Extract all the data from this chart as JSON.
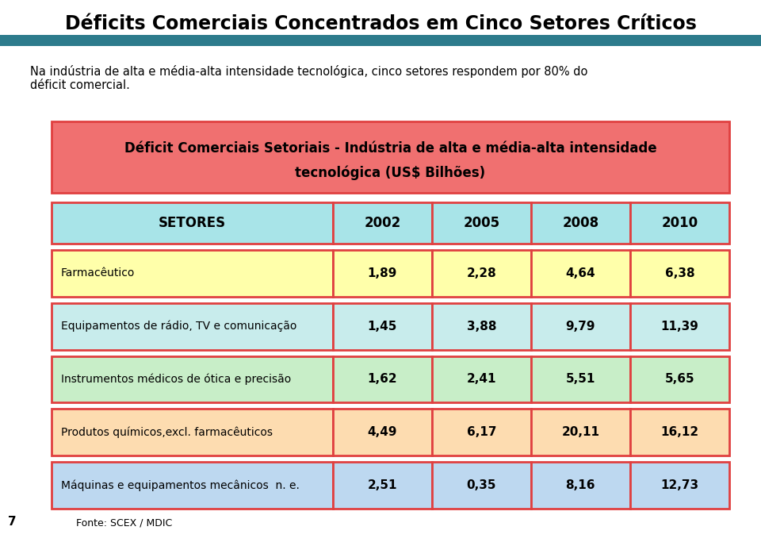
{
  "title": "Déficits Comerciais Concentrados em Cinco Setores Críticos",
  "subtitle_line1": "Na indústria de alta e média-alta intensidade tecnológica, cinco setores respondem por 80% do",
  "subtitle_line2": "déficit comercial.",
  "table_title_line1": "Déficit Comerciais Setoriais - Indústria de alta e média-alta intensidade",
  "table_title_line2": "tecnológica (US$ Bilhões)",
  "table_title_bg": "#F07070",
  "header_bg": "#A8E4E8",
  "border_color": "#E04040",
  "teal_bar_color": "#2D7B8C",
  "columns": [
    "SETORES",
    "2002",
    "2005",
    "2008",
    "2010"
  ],
  "row_label_colors": [
    "#FFFFAA",
    "#C8ECEC",
    "#C8EEC8",
    "#FDDCB0",
    "#BDD8F0"
  ],
  "row_value_colors": [
    "#FFFFAA",
    "#C8ECEC",
    "#C8EEC8",
    "#FDDCB0",
    "#BDD8F0"
  ],
  "rows": [
    [
      "Farmacêutico",
      "1,89",
      "2,28",
      "4,64",
      "6,38"
    ],
    [
      "Equipamentos de rádio, TV e comunicação",
      "1,45",
      "3,88",
      "9,79",
      "11,39"
    ],
    [
      "Instrumentos médicos de ótica e precisão",
      "1,62",
      "2,41",
      "5,51",
      "5,65"
    ],
    [
      "Produtos químicos,excl. farmacêuticos",
      "4,49",
      "6,17",
      "20,11",
      "16,12"
    ],
    [
      "Máquinas e equipamentos mecânicos  n. e.",
      "2,51",
      "0,35",
      "8,16",
      "12,73"
    ]
  ],
  "footer": "Fonte: SCEX / MDIC",
  "page_number": "7",
  "bg_color": "#FFFFFF",
  "title_color": "#000000",
  "row_text_color": "#000000",
  "header_text_color": "#000000"
}
